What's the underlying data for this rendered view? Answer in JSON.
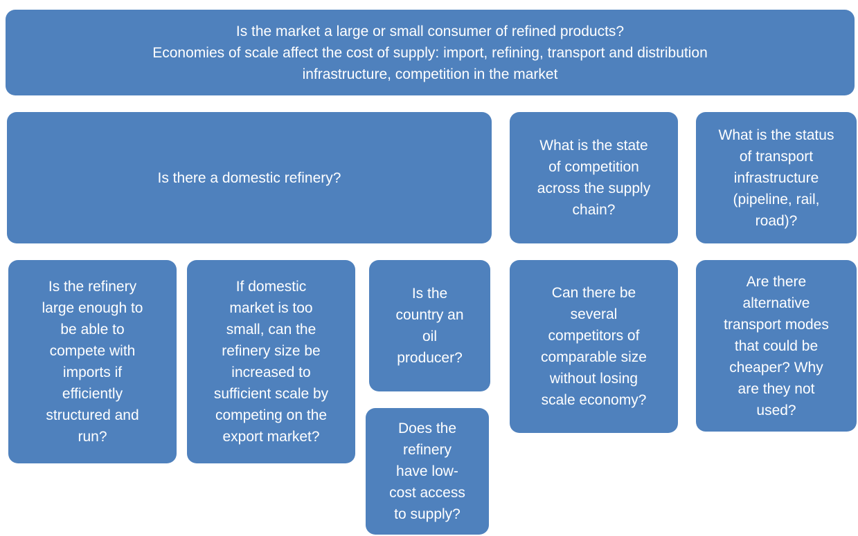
{
  "nodes": [
    {
      "lines": [
        "Is the market a large or small consumer of refined products?",
        "Economies of scale affect the cost of supply: import, refining, transport and distribution",
        "infrastructure, competition in the market"
      ]
    },
    {
      "lines": [
        "Is there a domestic refinery?"
      ]
    },
    {
      "lines": [
        "What is the state",
        "of competition",
        "across the supply",
        "chain?"
      ]
    },
    {
      "lines": [
        "What is the status",
        "of transport",
        "infrastructure",
        "(pipeline, rail,",
        "road)?"
      ]
    },
    {
      "lines": [
        "Is the refinery",
        "large enough to",
        "be able to",
        "compete with",
        "imports if",
        "efficiently",
        "structured and",
        "run?"
      ]
    },
    {
      "lines": [
        "If domestic",
        "market is too",
        "small, can the",
        "refinery size be",
        "increased to",
        "sufficient scale by",
        "competing on the",
        "export market?"
      ]
    },
    {
      "lines": [
        "Is the",
        "country an",
        "oil",
        "producer?"
      ]
    },
    {
      "lines": [
        "Does the",
        "refinery",
        "have low-",
        "cost access",
        "to supply?"
      ]
    },
    {
      "lines": [
        "Can there be",
        "several",
        "competitors of",
        "comparable size",
        "without losing",
        "scale economy?"
      ]
    },
    {
      "lines": [
        "Are there",
        "alternative",
        "transport modes",
        "that could be",
        "cheaper? Why",
        "are they not",
        "used?"
      ]
    }
  ]
}
